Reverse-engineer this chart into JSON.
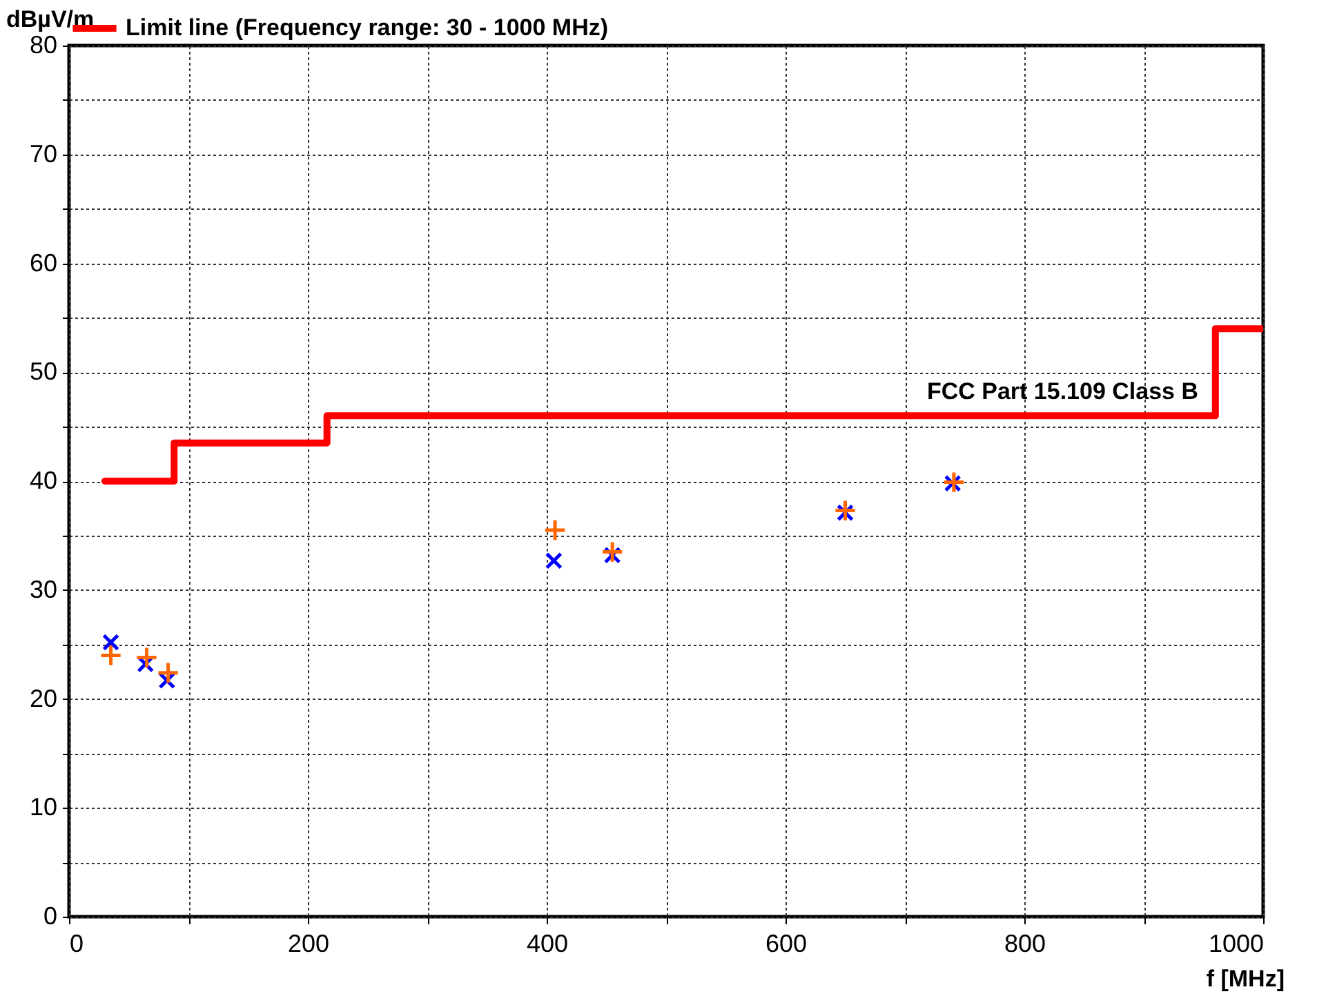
{
  "chart_data": {
    "type": "scatter",
    "xlabel": "f [MHz]",
    "ylabel": "dBµV/m",
    "xlim": [
      0,
      1000
    ],
    "ylim": [
      0,
      80
    ],
    "xticks": [
      0,
      {
        "value": 100,
        "label": null
      },
      200,
      {
        "value": 300,
        "label": null
      },
      400,
      {
        "value": 500,
        "label": null
      },
      600,
      {
        "value": 700,
        "label": null
      },
      800,
      {
        "value": 900,
        "label": null
      },
      1000
    ],
    "yticks": [
      0,
      {
        "value": 5,
        "label": null
      },
      10,
      {
        "value": 15,
        "label": null
      },
      20,
      {
        "value": 25,
        "label": null
      },
      30,
      {
        "value": 35,
        "label": null
      },
      40,
      {
        "value": 45,
        "label": null
      },
      50,
      {
        "value": 55,
        "label": null
      },
      60,
      {
        "value": 65,
        "label": null
      },
      70,
      {
        "value": 75,
        "label": null
      },
      80
    ],
    "grid": true,
    "legend": "top",
    "series": [
      {
        "type": "step",
        "name": "Limit line (Frequency range: 30 - 1000 MHz)",
        "color": "#ff0000",
        "line_style": "solid",
        "x": [
          30,
          88,
          216,
          960,
          1000
        ],
        "values": [
          40,
          43.5,
          46,
          54,
          54
        ]
      },
      {
        "type": "scatter",
        "marker": "cross",
        "color": "#0000ff",
        "x": [
          35,
          64,
          82,
          406,
          455,
          650,
          740
        ],
        "values": [
          25.2,
          23.2,
          21.7,
          32.7,
          33.2,
          37.1,
          39.8
        ]
      },
      {
        "type": "scatter",
        "marker": "cross",
        "color": "#ff6600",
        "x": [
          35,
          65,
          83,
          407,
          455,
          650,
          741
        ],
        "values": [
          24.0,
          23.8,
          22.4,
          35.5,
          33.5,
          37.3,
          39.9
        ]
      }
    ],
    "annotations": [
      "FCC Part 15.109 Class B"
    ]
  }
}
